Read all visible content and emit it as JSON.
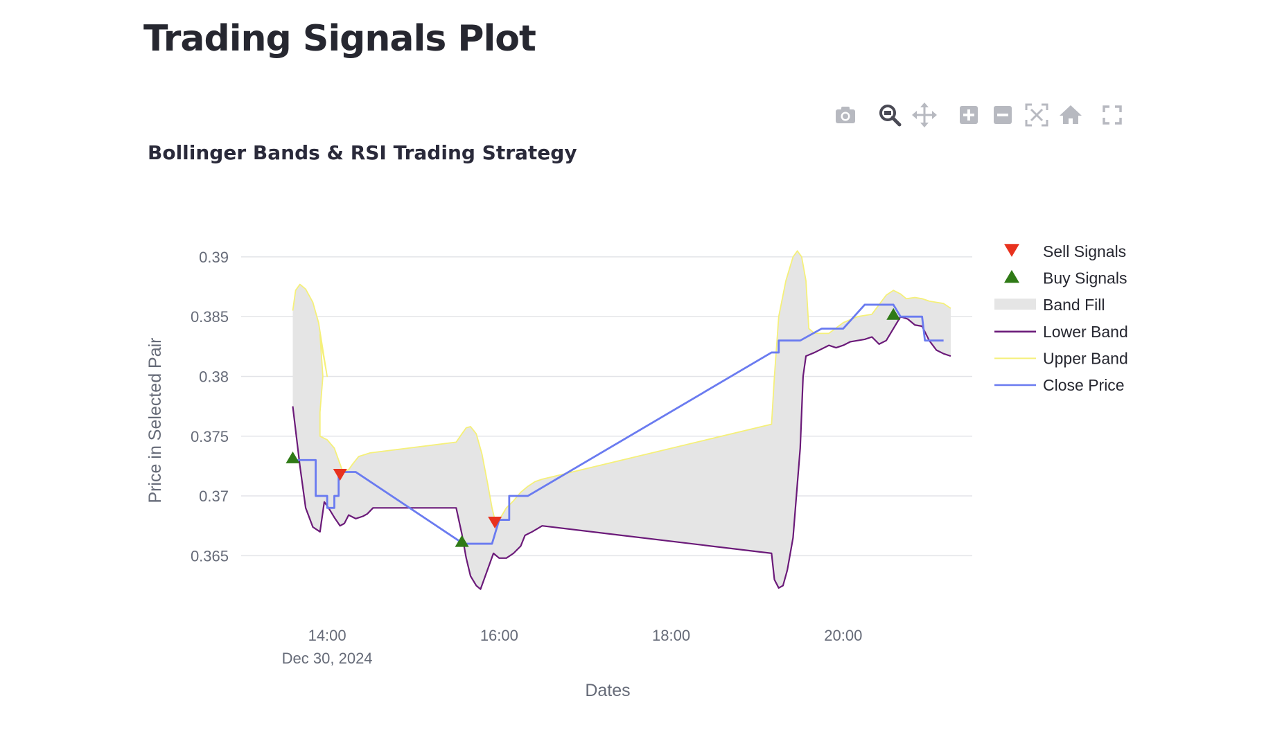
{
  "page": {
    "title": "Trading Signals Plot"
  },
  "modebar": {
    "buttons": [
      {
        "name": "camera-icon",
        "label": "Download plot as a png"
      },
      {
        "name": "zoom-icon",
        "label": "Zoom",
        "active": true
      },
      {
        "name": "pan-icon",
        "label": "Pan"
      },
      {
        "name": "zoom-in-icon",
        "label": "Zoom in"
      },
      {
        "name": "zoom-out-icon",
        "label": "Zoom out"
      },
      {
        "name": "autoscale-icon",
        "label": "Autoscale"
      },
      {
        "name": "home-icon",
        "label": "Reset axes"
      },
      {
        "name": "fullscreen-icon",
        "label": "Fullscreen"
      }
    ]
  },
  "chart_data": {
    "type": "line",
    "title": "Bollinger Bands & RSI Trading Strategy",
    "xlabel": "Dates",
    "ylabel": "Price in Selected Pair",
    "x_range": [
      "2024-12-30 13:00",
      "2024-12-30 21:30"
    ],
    "ylim": [
      0.3605,
      0.3915
    ],
    "x_ticks": [
      {
        "time": "14:00",
        "label": "14:00",
        "sublabel": "Dec 30, 2024"
      },
      {
        "time": "16:00",
        "label": "16:00"
      },
      {
        "time": "18:00",
        "label": "18:00"
      },
      {
        "time": "20:00",
        "label": "20:00"
      }
    ],
    "y_ticks": [
      {
        "value": 0.365,
        "label": "0.365"
      },
      {
        "value": 0.37,
        "label": "0.37"
      },
      {
        "value": 0.375,
        "label": "0.375"
      },
      {
        "value": 0.38,
        "label": "0.38"
      },
      {
        "value": 0.385,
        "label": "0.385"
      },
      {
        "value": 0.39,
        "label": "0.39"
      }
    ],
    "grid": true,
    "legend_position": "right",
    "band_fill_color": "#e5e5e5",
    "series": [
      {
        "name": "Upper Band",
        "color": "#f5f07a",
        "type": "line",
        "points": [
          [
            "13:36",
            0.3855
          ],
          [
            "13:38",
            0.3872
          ],
          [
            "13:41",
            0.3877
          ],
          [
            "13:45",
            0.3873
          ],
          [
            "13:50",
            0.3862
          ],
          [
            "13:54",
            0.3845
          ],
          [
            "14:00",
            0.38
          ],
          [
            "13:57",
            0.382
          ],
          [
            "13:55",
            0.3835
          ],
          [
            "13:57",
            0.38
          ],
          [
            "13:55",
            0.377
          ],
          [
            "13:55",
            0.375
          ],
          [
            "14:00",
            0.3747
          ],
          [
            "14:05",
            0.374
          ],
          [
            "14:08",
            0.373
          ],
          [
            "14:11",
            0.372
          ],
          [
            "14:15",
            0.3722
          ],
          [
            "14:18",
            0.3727
          ],
          [
            "14:22",
            0.3733
          ],
          [
            "14:30",
            0.3736
          ],
          [
            "15:30",
            0.3745
          ],
          [
            "15:34",
            0.3752
          ],
          [
            "15:37",
            0.3757
          ],
          [
            "15:40",
            0.3758
          ],
          [
            "15:44",
            0.3752
          ],
          [
            "15:48",
            0.3735
          ],
          [
            "15:52",
            0.371
          ],
          [
            "15:55",
            0.369
          ],
          [
            "15:58",
            0.3675
          ],
          [
            "16:00",
            0.368
          ],
          [
            "16:05",
            0.369
          ],
          [
            "16:10",
            0.3696
          ],
          [
            "16:15",
            0.3703
          ],
          [
            "16:20",
            0.3708
          ],
          [
            "16:25",
            0.3712
          ],
          [
            "16:30",
            0.3714
          ],
          [
            "19:10",
            0.376
          ],
          [
            "19:12",
            0.38
          ],
          [
            "19:15",
            0.385
          ],
          [
            "19:20",
            0.388
          ],
          [
            "19:25",
            0.39
          ],
          [
            "19:28",
            0.3905
          ],
          [
            "19:31",
            0.39
          ],
          [
            "19:34",
            0.388
          ],
          [
            "19:36",
            0.384
          ],
          [
            "19:40",
            0.3836
          ],
          [
            "19:50",
            0.3836
          ],
          [
            "20:00",
            0.3845
          ],
          [
            "20:10",
            0.385
          ],
          [
            "20:20",
            0.3852
          ],
          [
            "20:25",
            0.386
          ],
          [
            "20:30",
            0.3868
          ],
          [
            "20:35",
            0.3872
          ],
          [
            "20:40",
            0.3869
          ],
          [
            "20:44",
            0.3865
          ],
          [
            "20:50",
            0.3866
          ],
          [
            "20:55",
            0.3865
          ],
          [
            "21:00",
            0.3863
          ],
          [
            "21:05",
            0.3862
          ],
          [
            "21:10",
            0.3861
          ],
          [
            "21:15",
            0.3857
          ]
        ]
      },
      {
        "name": "Lower Band",
        "color": "#6b1a79",
        "type": "line",
        "points": [
          [
            "13:36",
            0.3775
          ],
          [
            "13:38",
            0.3755
          ],
          [
            "13:41",
            0.3725
          ],
          [
            "13:45",
            0.369
          ],
          [
            "13:50",
            0.3674
          ],
          [
            "13:55",
            0.367
          ],
          [
            "13:58",
            0.3695
          ],
          [
            "14:02",
            0.3688
          ],
          [
            "14:05",
            0.3682
          ],
          [
            "14:09",
            0.3675
          ],
          [
            "14:12",
            0.3677
          ],
          [
            "14:15",
            0.3684
          ],
          [
            "14:20",
            0.3681
          ],
          [
            "14:25",
            0.3683
          ],
          [
            "14:28",
            0.3685
          ],
          [
            "14:32",
            0.369
          ],
          [
            "15:30",
            0.369
          ],
          [
            "15:34",
            0.3668
          ],
          [
            "15:37",
            0.3648
          ],
          [
            "15:40",
            0.3633
          ],
          [
            "15:44",
            0.3625
          ],
          [
            "15:47",
            0.3622
          ],
          [
            "15:50",
            0.3632
          ],
          [
            "15:53",
            0.3642
          ],
          [
            "15:56",
            0.3652
          ],
          [
            "16:00",
            0.3648
          ],
          [
            "16:05",
            0.3648
          ],
          [
            "16:10",
            0.3652
          ],
          [
            "16:15",
            0.3658
          ],
          [
            "16:18",
            0.3667
          ],
          [
            "16:23",
            0.367
          ],
          [
            "16:30",
            0.3675
          ],
          [
            "19:10",
            0.3652
          ],
          [
            "19:12",
            0.363
          ],
          [
            "19:15",
            0.3623
          ],
          [
            "19:18",
            0.3625
          ],
          [
            "19:21",
            0.3638
          ],
          [
            "19:25",
            0.3665
          ],
          [
            "19:30",
            0.374
          ],
          [
            "19:32",
            0.38
          ],
          [
            "19:34",
            0.3817
          ],
          [
            "19:40",
            0.382
          ],
          [
            "19:50",
            0.3826
          ],
          [
            "19:55",
            0.3824
          ],
          [
            "20:00",
            0.3826
          ],
          [
            "20:05",
            0.3829
          ],
          [
            "20:10",
            0.383
          ],
          [
            "20:15",
            0.3831
          ],
          [
            "20:20",
            0.3833
          ],
          [
            "20:25",
            0.3827
          ],
          [
            "20:30",
            0.383
          ],
          [
            "20:35",
            0.384
          ],
          [
            "20:40",
            0.385
          ],
          [
            "20:45",
            0.3848
          ],
          [
            "20:50",
            0.3843
          ],
          [
            "20:55",
            0.3842
          ],
          [
            "21:00",
            0.383
          ],
          [
            "21:05",
            0.3822
          ],
          [
            "21:10",
            0.3819
          ],
          [
            "21:15",
            0.3817
          ]
        ]
      },
      {
        "name": "Close Price",
        "color": "#6a7bf0",
        "type": "line",
        "points": [
          [
            "13:36",
            0.373
          ],
          [
            "13:52",
            0.373
          ],
          [
            "13:52",
            0.37
          ],
          [
            "14:00",
            0.37
          ],
          [
            "14:00",
            0.369
          ],
          [
            "14:05",
            0.369
          ],
          [
            "14:05",
            0.37
          ],
          [
            "14:08",
            0.37
          ],
          [
            "14:08",
            0.372
          ],
          [
            "14:20",
            0.372
          ],
          [
            "15:35",
            0.366
          ],
          [
            "15:55",
            0.366
          ],
          [
            "16:00",
            0.368
          ],
          [
            "16:05",
            0.368
          ],
          [
            "16:07",
            0.368
          ],
          [
            "16:07",
            0.37
          ],
          [
            "16:20",
            0.37
          ],
          [
            "19:10",
            0.382
          ],
          [
            "19:15",
            0.382
          ],
          [
            "19:15",
            0.383
          ],
          [
            "19:30",
            0.383
          ],
          [
            "19:45",
            0.384
          ],
          [
            "20:00",
            0.384
          ],
          [
            "20:15",
            0.386
          ],
          [
            "20:35",
            0.386
          ],
          [
            "20:40",
            0.385
          ],
          [
            "20:55",
            0.385
          ],
          [
            "20:57",
            0.383
          ],
          [
            "21:10",
            0.383
          ]
        ]
      },
      {
        "name": "Sell Signals",
        "color": "#e8321e",
        "type": "marker",
        "symbol": "triangle-down",
        "points": [
          [
            "14:09",
            0.3718
          ],
          [
            "15:57",
            0.3678
          ]
        ]
      },
      {
        "name": "Buy Signals",
        "color": "#2f7a16",
        "type": "marker",
        "symbol": "triangle-up",
        "points": [
          [
            "13:36",
            0.3732
          ],
          [
            "15:34",
            0.3662
          ],
          [
            "20:35",
            0.3852
          ]
        ]
      }
    ],
    "legend": [
      "Sell Signals",
      "Buy Signals",
      "Band Fill",
      "Lower Band",
      "Upper Band",
      "Close Price"
    ]
  }
}
